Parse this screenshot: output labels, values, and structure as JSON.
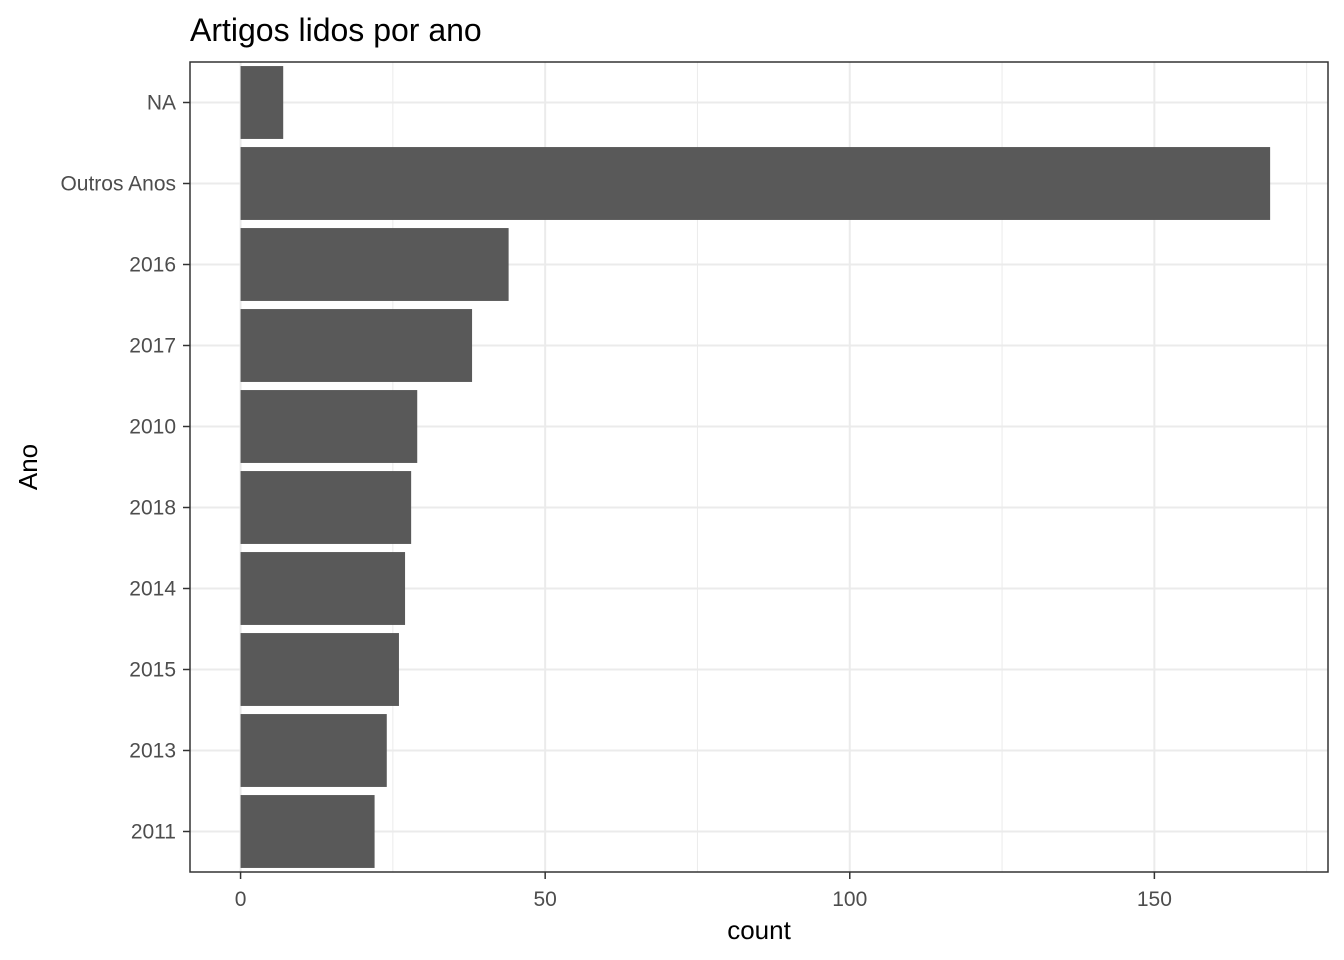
{
  "chart_data": {
    "type": "bar",
    "orientation": "horizontal",
    "title": "Artigos lidos por ano",
    "xlabel": "count",
    "ylabel": "Ano",
    "categories": [
      "NA",
      "Outros Anos",
      "2016",
      "2017",
      "2010",
      "2018",
      "2014",
      "2015",
      "2013",
      "2011"
    ],
    "values": [
      7,
      169,
      44,
      38,
      29,
      28,
      27,
      26,
      24,
      22
    ],
    "xlim": [
      -8.3,
      178.5
    ],
    "xticks": [
      0,
      50,
      100,
      150
    ],
    "xtick_labels": [
      "0",
      "50",
      "100",
      "150"
    ],
    "grid": true,
    "legend": "none",
    "colors": {
      "bar": "#595959",
      "grid": "#ebebeb",
      "panel_border": "#333333",
      "tick_label": "#4d4d4d",
      "text": "#000000"
    }
  }
}
